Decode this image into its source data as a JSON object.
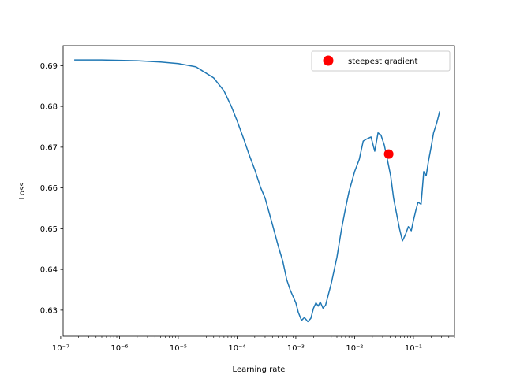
{
  "chart_data": {
    "type": "line",
    "title": "",
    "xlabel": "Learning rate",
    "ylabel": "Loss",
    "xscale": "log",
    "xlim": [
      1.1e-07,
      0.5
    ],
    "ylim": [
      0.6236,
      0.6949
    ],
    "grid": false,
    "legend_position": "top-right",
    "line_color": "#1f77b4",
    "marker_color": "#ff0000",
    "x_ticks": [
      {
        "value": 1e-07,
        "label": "10⁻⁷"
      },
      {
        "value": 1e-06,
        "label": "10⁻⁶"
      },
      {
        "value": 1e-05,
        "label": "10⁻⁵"
      },
      {
        "value": 0.0001,
        "label": "10⁻⁴"
      },
      {
        "value": 0.001,
        "label": "10⁻³"
      },
      {
        "value": 0.01,
        "label": "10⁻²"
      },
      {
        "value": 0.1,
        "label": "10⁻¹"
      }
    ],
    "y_ticks": [
      {
        "value": 0.63,
        "label": "0.63"
      },
      {
        "value": 0.64,
        "label": "0.64"
      },
      {
        "value": 0.65,
        "label": "0.65"
      },
      {
        "value": 0.66,
        "label": "0.66"
      },
      {
        "value": 0.67,
        "label": "0.67"
      },
      {
        "value": 0.68,
        "label": "0.68"
      },
      {
        "value": 0.69,
        "label": "0.69"
      }
    ],
    "series": [
      {
        "x": [
          1.7e-07,
          5e-07,
          1e-06,
          2e-06,
          5e-06,
          1e-05,
          2e-05,
          4e-05,
          6e-05,
          8e-05,
          0.0001,
          0.00013,
          0.00016,
          0.0002,
          0.00025,
          0.0003,
          0.0004,
          0.0005,
          0.0006,
          0.0007,
          0.0008,
          0.001,
          0.0011,
          0.00125,
          0.0014,
          0.0016,
          0.0018,
          0.002,
          0.0022,
          0.0024,
          0.0026,
          0.0029,
          0.0032,
          0.0036,
          0.004,
          0.005,
          0.006,
          0.007,
          0.008,
          0.01,
          0.012,
          0.014,
          0.016,
          0.019,
          0.022,
          0.025,
          0.028,
          0.032,
          0.036,
          0.041,
          0.046,
          0.052,
          0.058,
          0.065,
          0.073,
          0.082,
          0.092,
          0.1,
          0.11,
          0.12,
          0.135,
          0.15,
          0.165,
          0.18,
          0.2,
          0.22,
          0.25,
          0.28
        ],
        "y": [
          0.6914,
          0.6914,
          0.6913,
          0.6912,
          0.6909,
          0.6905,
          0.6897,
          0.687,
          0.6838,
          0.68,
          0.6765,
          0.672,
          0.6682,
          0.6645,
          0.6602,
          0.6575,
          0.651,
          0.6458,
          0.642,
          0.6375,
          0.635,
          0.6318,
          0.6295,
          0.6275,
          0.6282,
          0.6272,
          0.628,
          0.6305,
          0.6318,
          0.631,
          0.632,
          0.6305,
          0.6312,
          0.634,
          0.6365,
          0.643,
          0.65,
          0.655,
          0.659,
          0.664,
          0.667,
          0.6715,
          0.672,
          0.6725,
          0.669,
          0.6735,
          0.673,
          0.6705,
          0.667,
          0.663,
          0.6575,
          0.6535,
          0.65,
          0.647,
          0.6485,
          0.6505,
          0.6495,
          0.652,
          0.6545,
          0.6565,
          0.656,
          0.664,
          0.663,
          0.6665,
          0.67,
          0.6735,
          0.676,
          0.6788
        ]
      }
    ],
    "highlight_point": {
      "x": 0.038,
      "y": 0.6683,
      "label": "steepest gradient"
    }
  }
}
